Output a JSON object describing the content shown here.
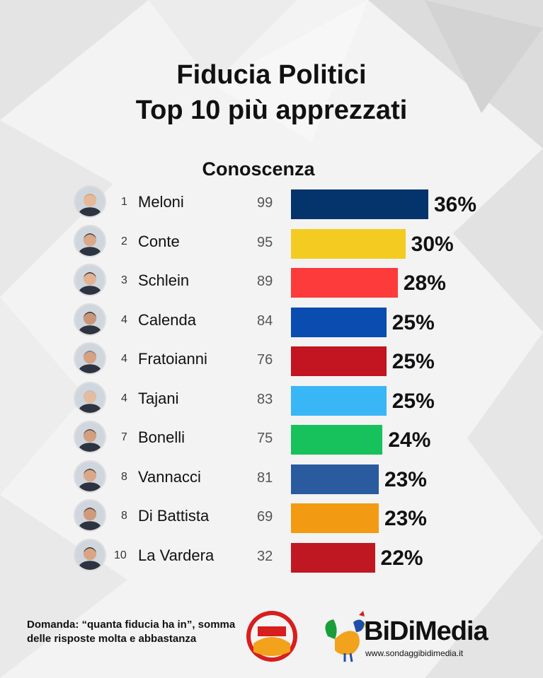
{
  "title_line1": "Fiducia Politici",
  "title_line2": "Top 10 più apprezzati",
  "footer": {
    "question": "Domanda: “quanta fiducia ha in”, somma delle risposte molta e abbastanza",
    "brand": "BiDiMedia",
    "brand_url": "www.sondaggibidimedia.it",
    "logo2_name": "ControCorrente"
  },
  "chart_data": {
    "type": "bar",
    "subtitle": "Conoscenza",
    "orientation": "horizontal",
    "unit": "%",
    "xlim": [
      0,
      36
    ],
    "rows": [
      {
        "rank": "1",
        "name": "Meloni",
        "knowledge": "99",
        "value": 36,
        "label": "36%",
        "color": "#04346b"
      },
      {
        "rank": "2",
        "name": "Conte",
        "knowledge": "95",
        "value": 30,
        "label": "30%",
        "color": "#f4cb21"
      },
      {
        "rank": "3",
        "name": "Schlein",
        "knowledge": "89",
        "value": 28,
        "label": "28%",
        "color": "#fd3b3b"
      },
      {
        "rank": "4",
        "name": "Calenda",
        "knowledge": "84",
        "value": 25,
        "label": "25%",
        "color": "#0b4cb0"
      },
      {
        "rank": "4",
        "name": "Fratoianni",
        "knowledge": "76",
        "value": 25,
        "label": "25%",
        "color": "#c21421"
      },
      {
        "rank": "4",
        "name": "Tajani",
        "knowledge": "83",
        "value": 25,
        "label": "25%",
        "color": "#39b6f6"
      },
      {
        "rank": "7",
        "name": "Bonelli",
        "knowledge": "75",
        "value": 24,
        "label": "24%",
        "color": "#17c15b"
      },
      {
        "rank": "8",
        "name": "Vannacci",
        "knowledge": "81",
        "value": 23,
        "label": "23%",
        "color": "#2a5b9f"
      },
      {
        "rank": "8",
        "name": "Di Battista",
        "knowledge": "69",
        "value": 23,
        "label": "23%",
        "color": "#f29b12"
      },
      {
        "rank": "10",
        "name": "La Vardera",
        "knowledge": "32",
        "value": 22,
        "label": "22%",
        "color": "#c01822"
      }
    ]
  }
}
